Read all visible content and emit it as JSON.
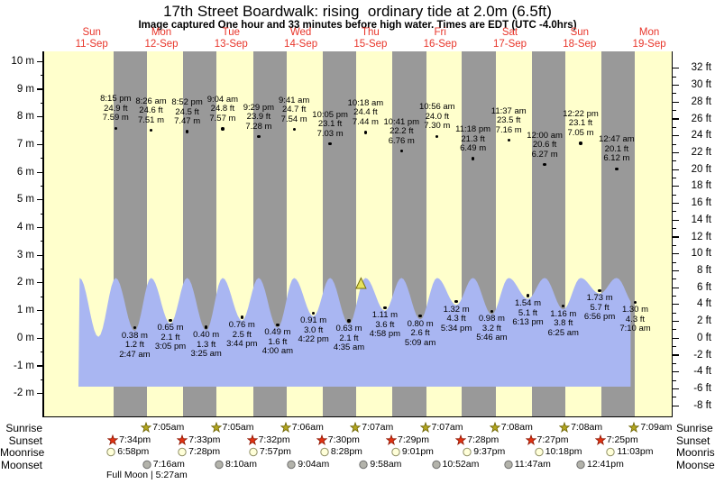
{
  "title": "17th Street Boardwalk: rising  ordinary tide at 2.0m (6.5ft)",
  "subtitle": "Image captured One hour and 33 minutes before high water. Times are EDT (UTC -4.0hrs)",
  "full_moon": "Full Moon | 5:27am",
  "colors": {
    "plot_bg": "#ffffcc",
    "night_band": "#999999",
    "wave_fill": "#a9b6f2",
    "date_red": "#e8352a",
    "sunrise_star": "#b2a51f",
    "sunrise_star_edge": "#6b6200",
    "sunset_star": "#e23313",
    "sunset_star_edge": "#8f1500",
    "moonrise_fill": "#ffffd9",
    "moonrise_edge": "#8f8f66",
    "moonset_fill": "#b3b3ab",
    "moonset_edge": "#6f6f6f",
    "now_marker": "#e7e35e",
    "now_marker_edge": "#77700a"
  },
  "chart_data": {
    "type": "area",
    "title": "17th Street Boardwalk tide forecast, 9 days",
    "x_axis": {
      "days": [
        {
          "name": "Sun",
          "date": "11-Sep"
        },
        {
          "name": "Mon",
          "date": "12-Sep"
        },
        {
          "name": "Tue",
          "date": "13-Sep"
        },
        {
          "name": "Wed",
          "date": "14-Sep"
        },
        {
          "name": "Thu",
          "date": "15-Sep"
        },
        {
          "name": "Fri",
          "date": "16-Sep"
        },
        {
          "name": "Sat",
          "date": "17-Sep"
        },
        {
          "name": "Sun",
          "date": "18-Sep"
        },
        {
          "name": "Mon",
          "date": "19-Sep"
        }
      ]
    },
    "y_axis_left": {
      "unit": "m",
      "min": -2,
      "max": 10,
      "tick_step": 1
    },
    "y_axis_right": {
      "unit": "ft",
      "min": -8,
      "max": 32,
      "tick_step": 2
    },
    "high_tides": [
      {
        "day": 0,
        "time": "8:15 pm",
        "ft": 24.9,
        "m": 7.59
      },
      {
        "day": 1,
        "time": "8:26 am",
        "ft": 24.6,
        "m": 7.51
      },
      {
        "day": 1,
        "time": "8:52 pm",
        "ft": 24.5,
        "m": 7.47
      },
      {
        "day": 2,
        "time": "9:04 am",
        "ft": 24.8,
        "m": 7.57
      },
      {
        "day": 2,
        "time": "9:29 pm",
        "ft": 23.9,
        "m": 7.28
      },
      {
        "day": 3,
        "time": "9:41 am",
        "ft": 24.7,
        "m": 7.54
      },
      {
        "day": 3,
        "time": "10:05 pm",
        "ft": 23.1,
        "m": 7.03
      },
      {
        "day": 4,
        "time": "10:18 am",
        "ft": 24.4,
        "m": 7.44
      },
      {
        "day": 4,
        "time": "10:41 pm",
        "ft": 22.2,
        "m": 6.76
      },
      {
        "day": 5,
        "time": "10:56 am",
        "ft": 24.0,
        "m": 7.3
      },
      {
        "day": 5,
        "time": "11:18 pm",
        "ft": 21.3,
        "m": 6.49
      },
      {
        "day": 6,
        "time": "11:37 am",
        "ft": 23.5,
        "m": 7.16
      },
      {
        "day": 7,
        "time": "12:00 am",
        "ft": 20.6,
        "m": 6.27
      },
      {
        "day": 7,
        "time": "12:22 pm",
        "ft": 23.1,
        "m": 7.05
      },
      {
        "day": 8,
        "time": "12:47 am",
        "ft": 20.1,
        "m": 6.12
      }
    ],
    "low_tides": [
      {
        "day": 1,
        "time": "2:47 am",
        "ft": 1.2,
        "m": 0.38
      },
      {
        "day": 1,
        "time": "3:05 pm",
        "ft": 2.1,
        "m": 0.65
      },
      {
        "day": 2,
        "time": "3:25 am",
        "ft": 1.3,
        "m": 0.4
      },
      {
        "day": 2,
        "time": "3:44 pm",
        "ft": 2.5,
        "m": 0.76
      },
      {
        "day": 3,
        "time": "4:00 am",
        "ft": 1.6,
        "m": 0.49
      },
      {
        "day": 3,
        "time": "4:22 pm",
        "ft": 3.0,
        "m": 0.91
      },
      {
        "day": 4,
        "time": "4:35 am",
        "ft": 2.1,
        "m": 0.63
      },
      {
        "day": 4,
        "time": "4:58 pm",
        "ft": 3.6,
        "m": 1.11
      },
      {
        "day": 5,
        "time": "5:09 am",
        "ft": 2.6,
        "m": 0.8
      },
      {
        "day": 5,
        "time": "5:34 pm",
        "ft": 4.3,
        "m": 1.32
      },
      {
        "day": 6,
        "time": "5:46 am",
        "ft": 3.2,
        "m": 0.98
      },
      {
        "day": 6,
        "time": "6:13 pm",
        "ft": 5.1,
        "m": 1.54
      },
      {
        "day": 7,
        "time": "6:25 am",
        "ft": 3.8,
        "m": 1.16
      },
      {
        "day": 7,
        "time": "6:56 pm",
        "ft": 5.7,
        "m": 1.73
      },
      {
        "day": 8,
        "time": "7:10 am",
        "ft": 4.3,
        "m": 1.3
      }
    ],
    "astro": {
      "sunrise": {
        "label": "Sunrise",
        "icon": "sunrise-star-icon",
        "entries": [
          {
            "day": 1,
            "time": "7:05am"
          },
          {
            "day": 2,
            "time": "7:05am"
          },
          {
            "day": 3,
            "time": "7:06am"
          },
          {
            "day": 4,
            "time": "7:07am"
          },
          {
            "day": 5,
            "time": "7:07am"
          },
          {
            "day": 6,
            "time": "7:08am"
          },
          {
            "day": 7,
            "time": "7:08am"
          },
          {
            "day": 8,
            "time": "7:09am"
          }
        ]
      },
      "sunset": {
        "label": "Sunset",
        "icon": "sunset-star-icon",
        "entries": [
          {
            "day": 0,
            "time": "7:34pm"
          },
          {
            "day": 1,
            "time": "7:33pm"
          },
          {
            "day": 2,
            "time": "7:32pm"
          },
          {
            "day": 3,
            "time": "7:30pm"
          },
          {
            "day": 4,
            "time": "7:29pm"
          },
          {
            "day": 5,
            "time": "7:28pm"
          },
          {
            "day": 6,
            "time": "7:27pm"
          },
          {
            "day": 7,
            "time": "7:25pm"
          }
        ]
      },
      "moonrise": {
        "label": "Moonrise",
        "icon": "moonrise-icon",
        "entries": [
          {
            "day": 0,
            "time": "6:58pm"
          },
          {
            "day": 1,
            "time": "7:28pm"
          },
          {
            "day": 2,
            "time": "7:57pm"
          },
          {
            "day": 3,
            "time": "8:28pm"
          },
          {
            "day": 4,
            "time": "9:01pm"
          },
          {
            "day": 5,
            "time": "9:37pm"
          },
          {
            "day": 6,
            "time": "10:18pm"
          },
          {
            "day": 7,
            "time": "11:03pm"
          }
        ]
      },
      "moonset": {
        "label": "Moonset",
        "icon": "moonset-icon",
        "entries": [
          {
            "day": 1,
            "time": "7:16am"
          },
          {
            "day": 2,
            "time": "8:10am"
          },
          {
            "day": 3,
            "time": "9:04am"
          },
          {
            "day": 4,
            "time": "9:58am"
          },
          {
            "day": 5,
            "time": "10:52am"
          },
          {
            "day": 6,
            "time": "11:47am"
          },
          {
            "day": 7,
            "time": "12:41pm"
          }
        ]
      }
    },
    "current_marker": {
      "day": 4,
      "time": "8:45 am",
      "height_m": 2.0
    },
    "wave": {
      "display_peak_m": 2.18,
      "base_m": -1.75,
      "lead_events": [
        {
          "day": 0,
          "time": "7:50 am",
          "m": 2.18,
          "kind": "peak"
        },
        {
          "day": 0,
          "time": "2:18 pm",
          "m": 0.05,
          "kind": "trough"
        }
      ]
    }
  }
}
